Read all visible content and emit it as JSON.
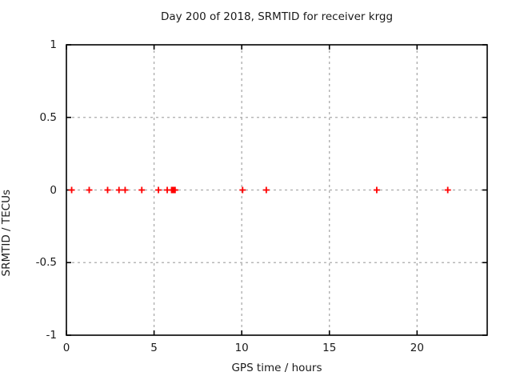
{
  "title": "Day 200 of 2018, SRMTID for receiver krgg",
  "chart_data": {
    "type": "scatter",
    "title": "Day 200 of 2018, SRMTID for receiver krgg",
    "xlabel": "GPS time / hours",
    "ylabel": "SRMTID / TECUs",
    "xlim": [
      0,
      24
    ],
    "ylim": [
      -1,
      1
    ],
    "x_ticks": [
      0,
      5,
      10,
      15,
      20
    ],
    "x_tick_labels": [
      "0",
      "5",
      "10",
      "15",
      "20"
    ],
    "y_ticks": [
      1,
      0.5,
      0,
      -0.5,
      -1
    ],
    "y_tick_labels": [
      "1",
      "0.5",
      "0",
      "-0.5",
      "-1"
    ],
    "grid": true,
    "legend": "none",
    "marker": "plus",
    "marker_color": "#ff0000",
    "series": [
      {
        "name": "SRMTID",
        "x": [
          0.3,
          1.3,
          2.35,
          3.0,
          3.35,
          4.3,
          5.25,
          5.75,
          6.0,
          6.05,
          6.1,
          6.15,
          6.2,
          10.05,
          11.4,
          17.7,
          21.75
        ],
        "y": [
          0,
          0,
          0,
          0,
          0,
          0,
          0,
          0,
          0,
          0,
          0,
          0,
          0,
          0,
          0,
          0,
          0
        ]
      }
    ]
  },
  "colors": {
    "background": "#ffffff",
    "frame": "#000000",
    "grid": "#ababab",
    "text": "#1a1a1a",
    "marker": "#ff0000"
  }
}
